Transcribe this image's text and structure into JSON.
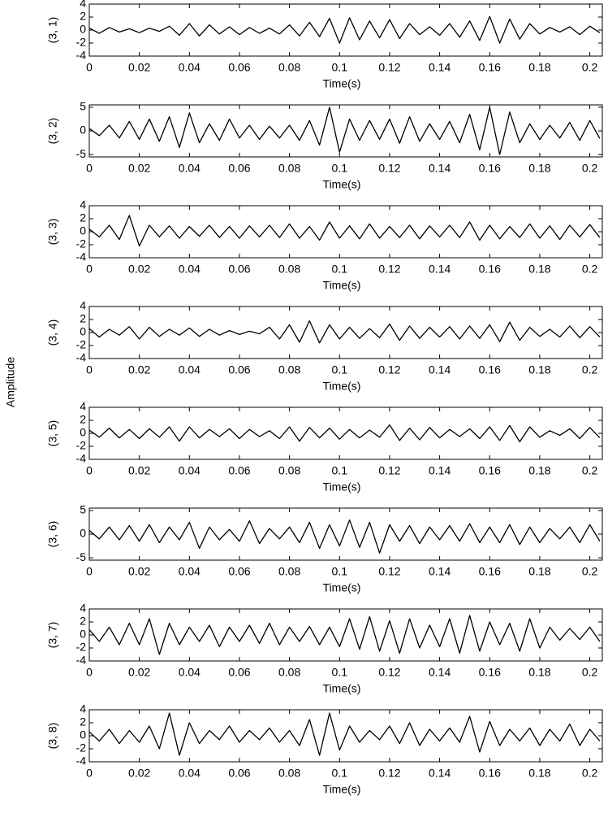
{
  "ylabel": "Amplitude",
  "chart_data": [
    {
      "type": "line",
      "ylabel": "(3, 1)",
      "xlabel": "Time(s)",
      "color": "#000000",
      "x": [
        0,
        0.004,
        0.008,
        0.012,
        0.016,
        0.02,
        0.024,
        0.028,
        0.032,
        0.036,
        0.04,
        0.044,
        0.048,
        0.052,
        0.056,
        0.06,
        0.064,
        0.068,
        0.072,
        0.076,
        0.08,
        0.084,
        0.088,
        0.092,
        0.096,
        0.1,
        0.104,
        0.108,
        0.112,
        0.116,
        0.12,
        0.124,
        0.128,
        0.132,
        0.136,
        0.14,
        0.144,
        0.148,
        0.152,
        0.156,
        0.16,
        0.164,
        0.168,
        0.172,
        0.176,
        0.18,
        0.184,
        0.188,
        0.192,
        0.196,
        0.2,
        0.204
      ],
      "values": [
        0.3,
        -0.5,
        0.4,
        -0.3,
        0.2,
        -0.4,
        0.3,
        -0.2,
        0.6,
        -0.8,
        1.0,
        -0.9,
        0.8,
        -0.6,
        0.5,
        -0.7,
        0.4,
        -0.5,
        0.3,
        -0.6,
        0.8,
        -0.9,
        1.2,
        -1.0,
        1.8,
        -2.0,
        1.9,
        -1.5,
        1.4,
        -1.2,
        1.6,
        -1.3,
        1.0,
        -0.7,
        0.5,
        -0.8,
        1.0,
        -1.1,
        1.4,
        -1.6,
        2.1,
        -2.0,
        1.7,
        -1.4,
        1.0,
        -0.6,
        0.4,
        -0.3,
        0.5,
        -0.7,
        0.6,
        -0.4
      ],
      "xlim": [
        0,
        0.205
      ],
      "xticks": [
        0,
        0.02,
        0.04,
        0.06,
        0.08,
        0.1,
        0.12,
        0.14,
        0.16,
        0.18,
        0.2
      ],
      "ylim": [
        -4,
        4
      ],
      "yticks": [
        -4,
        -2,
        0,
        2,
        4
      ]
    },
    {
      "type": "line",
      "ylabel": "(3, 2)",
      "xlabel": "Time(s)",
      "color": "#000000",
      "x": [
        0,
        0.004,
        0.008,
        0.012,
        0.016,
        0.02,
        0.024,
        0.028,
        0.032,
        0.036,
        0.04,
        0.044,
        0.048,
        0.052,
        0.056,
        0.06,
        0.064,
        0.068,
        0.072,
        0.076,
        0.08,
        0.084,
        0.088,
        0.092,
        0.096,
        0.1,
        0.104,
        0.108,
        0.112,
        0.116,
        0.12,
        0.124,
        0.128,
        0.132,
        0.136,
        0.14,
        0.144,
        0.148,
        0.152,
        0.156,
        0.16,
        0.164,
        0.168,
        0.172,
        0.176,
        0.18,
        0.184,
        0.188,
        0.192,
        0.196,
        0.2,
        0.204
      ],
      "values": [
        0.5,
        -1.0,
        1.2,
        -1.5,
        2.0,
        -1.8,
        2.5,
        -2.2,
        3.0,
        -3.5,
        3.8,
        -2.5,
        1.5,
        -2.0,
        2.5,
        -1.5,
        1.2,
        -1.8,
        1.0,
        -1.5,
        1.2,
        -2.0,
        2.2,
        -3.0,
        5.0,
        -4.5,
        2.5,
        -2.0,
        2.2,
        -1.8,
        2.5,
        -2.6,
        3.0,
        -2.2,
        1.5,
        -1.8,
        2.0,
        -2.5,
        3.5,
        -4.0,
        5.0,
        -5.0,
        4.0,
        -2.5,
        1.5,
        -1.8,
        1.2,
        -1.5,
        1.8,
        -2.0,
        2.2,
        -1.6
      ],
      "xlim": [
        0,
        0.205
      ],
      "xticks": [
        0,
        0.02,
        0.04,
        0.06,
        0.08,
        0.1,
        0.12,
        0.14,
        0.16,
        0.18,
        0.2
      ],
      "ylim": [
        -5.5,
        5.5
      ],
      "yticks": [
        -5,
        0,
        5
      ]
    },
    {
      "type": "line",
      "ylabel": "(3, 3)",
      "xlabel": "Time(s)",
      "color": "#000000",
      "x": [
        0,
        0.004,
        0.008,
        0.012,
        0.016,
        0.02,
        0.024,
        0.028,
        0.032,
        0.036,
        0.04,
        0.044,
        0.048,
        0.052,
        0.056,
        0.06,
        0.064,
        0.068,
        0.072,
        0.076,
        0.08,
        0.084,
        0.088,
        0.092,
        0.096,
        0.1,
        0.104,
        0.108,
        0.112,
        0.116,
        0.12,
        0.124,
        0.128,
        0.132,
        0.136,
        0.14,
        0.144,
        0.148,
        0.152,
        0.156,
        0.16,
        0.164,
        0.168,
        0.172,
        0.176,
        0.18,
        0.184,
        0.188,
        0.192,
        0.196,
        0.2,
        0.204
      ],
      "values": [
        0.4,
        -0.8,
        1.0,
        -1.2,
        2.5,
        -2.2,
        1.0,
        -0.8,
        0.9,
        -1.0,
        0.8,
        -0.7,
        1.0,
        -0.9,
        0.8,
        -1.0,
        0.9,
        -0.8,
        1.0,
        -0.9,
        1.2,
        -1.0,
        0.8,
        -1.3,
        1.5,
        -1.0,
        0.9,
        -1.1,
        1.2,
        -1.0,
        0.8,
        -0.9,
        1.0,
        -1.1,
        0.9,
        -0.8,
        1.0,
        -0.9,
        1.5,
        -1.3,
        1.0,
        -1.1,
        0.8,
        -0.9,
        1.2,
        -1.0,
        0.9,
        -1.2,
        1.0,
        -0.8,
        1.1,
        -0.9
      ],
      "xlim": [
        0,
        0.205
      ],
      "xticks": [
        0,
        0.02,
        0.04,
        0.06,
        0.08,
        0.1,
        0.12,
        0.14,
        0.16,
        0.18,
        0.2
      ],
      "ylim": [
        -4,
        4
      ],
      "yticks": [
        -4,
        -2,
        0,
        2,
        4
      ]
    },
    {
      "type": "line",
      "ylabel": "(3, 4)",
      "xlabel": "Time(s)",
      "color": "#000000",
      "x": [
        0,
        0.004,
        0.008,
        0.012,
        0.016,
        0.02,
        0.024,
        0.028,
        0.032,
        0.036,
        0.04,
        0.044,
        0.048,
        0.052,
        0.056,
        0.06,
        0.064,
        0.068,
        0.072,
        0.076,
        0.08,
        0.084,
        0.088,
        0.092,
        0.096,
        0.1,
        0.104,
        0.108,
        0.112,
        0.116,
        0.12,
        0.124,
        0.128,
        0.132,
        0.136,
        0.14,
        0.144,
        0.148,
        0.152,
        0.156,
        0.16,
        0.164,
        0.168,
        0.172,
        0.176,
        0.18,
        0.184,
        0.188,
        0.192,
        0.196,
        0.2,
        0.204
      ],
      "values": [
        0.6,
        -0.7,
        0.5,
        -0.4,
        0.9,
        -1.0,
        0.8,
        -0.6,
        0.5,
        -0.4,
        0.7,
        -0.6,
        0.5,
        -0.4,
        0.3,
        -0.3,
        0.2,
        -0.2,
        0.8,
        -1.0,
        1.2,
        -1.5,
        1.8,
        -1.6,
        1.2,
        -1.0,
        0.8,
        -0.9,
        0.6,
        -0.8,
        1.3,
        -1.2,
        1.0,
        -0.9,
        0.8,
        -0.7,
        0.9,
        -1.0,
        1.0,
        -0.9,
        1.2,
        -1.4,
        1.6,
        -1.2,
        0.8,
        -0.6,
        0.5,
        -0.7,
        1.0,
        -0.8,
        0.9,
        -0.7
      ],
      "xlim": [
        0,
        0.205
      ],
      "xticks": [
        0,
        0.02,
        0.04,
        0.06,
        0.08,
        0.1,
        0.12,
        0.14,
        0.16,
        0.18,
        0.2
      ],
      "ylim": [
        -4,
        4
      ],
      "yticks": [
        -4,
        -2,
        0,
        2,
        4
      ]
    },
    {
      "type": "line",
      "ylabel": "(3, 5)",
      "xlabel": "Time(s)",
      "color": "#000000",
      "x": [
        0,
        0.004,
        0.008,
        0.012,
        0.016,
        0.02,
        0.024,
        0.028,
        0.032,
        0.036,
        0.04,
        0.044,
        0.048,
        0.052,
        0.056,
        0.06,
        0.064,
        0.068,
        0.072,
        0.076,
        0.08,
        0.084,
        0.088,
        0.092,
        0.096,
        0.1,
        0.104,
        0.108,
        0.112,
        0.116,
        0.12,
        0.124,
        0.128,
        0.132,
        0.136,
        0.14,
        0.144,
        0.148,
        0.152,
        0.156,
        0.16,
        0.164,
        0.168,
        0.172,
        0.176,
        0.18,
        0.184,
        0.188,
        0.192,
        0.196,
        0.2,
        0.204
      ],
      "values": [
        0.5,
        -0.6,
        0.8,
        -0.7,
        0.6,
        -0.8,
        0.7,
        -0.6,
        1.0,
        -1.2,
        1.0,
        -0.7,
        0.6,
        -0.5,
        0.7,
        -0.8,
        0.6,
        -0.5,
        0.4,
        -0.8,
        1.0,
        -1.2,
        0.9,
        -0.7,
        0.8,
        -0.9,
        0.6,
        -0.7,
        0.5,
        -0.6,
        1.3,
        -1.1,
        0.8,
        -1.0,
        0.9,
        -0.7,
        0.6,
        -0.5,
        0.7,
        -0.8,
        1.0,
        -1.1,
        1.2,
        -1.3,
        1.0,
        -0.6,
        0.4,
        -0.3,
        0.7,
        -0.8,
        0.9,
        -0.7
      ],
      "xlim": [
        0,
        0.205
      ],
      "xticks": [
        0,
        0.02,
        0.04,
        0.06,
        0.08,
        0.1,
        0.12,
        0.14,
        0.16,
        0.18,
        0.2
      ],
      "ylim": [
        -4,
        4
      ],
      "yticks": [
        -4,
        -2,
        0,
        2,
        4
      ]
    },
    {
      "type": "line",
      "ylabel": "(3, 6)",
      "xlabel": "Time(s)",
      "color": "#000000",
      "x": [
        0,
        0.004,
        0.008,
        0.012,
        0.016,
        0.02,
        0.024,
        0.028,
        0.032,
        0.036,
        0.04,
        0.044,
        0.048,
        0.052,
        0.056,
        0.06,
        0.064,
        0.068,
        0.072,
        0.076,
        0.08,
        0.084,
        0.088,
        0.092,
        0.096,
        0.1,
        0.104,
        0.108,
        0.112,
        0.116,
        0.12,
        0.124,
        0.128,
        0.132,
        0.136,
        0.14,
        0.144,
        0.148,
        0.152,
        0.156,
        0.16,
        0.164,
        0.168,
        0.172,
        0.176,
        0.18,
        0.184,
        0.188,
        0.192,
        0.196,
        0.2,
        0.204
      ],
      "values": [
        0.8,
        -1.0,
        1.5,
        -1.2,
        1.8,
        -1.5,
        2.0,
        -1.8,
        1.5,
        -1.2,
        2.5,
        -3.0,
        1.5,
        -1.2,
        1.0,
        -1.5,
        2.8,
        -2.0,
        1.2,
        -1.0,
        1.5,
        -1.8,
        2.5,
        -3.0,
        2.0,
        -2.5,
        3.0,
        -2.8,
        2.5,
        -4.0,
        2.0,
        -1.5,
        1.8,
        -2.0,
        1.5,
        -1.2,
        1.8,
        -1.5,
        2.2,
        -1.8,
        1.5,
        -1.8,
        2.0,
        -2.2,
        1.5,
        -1.8,
        1.2,
        -1.0,
        1.5,
        -1.8,
        2.0,
        -1.5
      ],
      "xlim": [
        0,
        0.205
      ],
      "xticks": [
        0,
        0.02,
        0.04,
        0.06,
        0.08,
        0.1,
        0.12,
        0.14,
        0.16,
        0.18,
        0.2
      ],
      "ylim": [
        -5.5,
        5.5
      ],
      "yticks": [
        -5,
        0,
        5
      ]
    },
    {
      "type": "line",
      "ylabel": "(3, 7)",
      "xlabel": "Time(s)",
      "color": "#000000",
      "x": [
        0,
        0.004,
        0.008,
        0.012,
        0.016,
        0.02,
        0.024,
        0.028,
        0.032,
        0.036,
        0.04,
        0.044,
        0.048,
        0.052,
        0.056,
        0.06,
        0.064,
        0.068,
        0.072,
        0.076,
        0.08,
        0.084,
        0.088,
        0.092,
        0.096,
        0.1,
        0.104,
        0.108,
        0.112,
        0.116,
        0.12,
        0.124,
        0.128,
        0.132,
        0.136,
        0.14,
        0.144,
        0.148,
        0.152,
        0.156,
        0.16,
        0.164,
        0.168,
        0.172,
        0.176,
        0.18,
        0.184,
        0.188,
        0.192,
        0.196,
        0.2,
        0.204
      ],
      "values": [
        0.8,
        -1.0,
        1.2,
        -1.5,
        1.8,
        -1.5,
        2.5,
        -3.0,
        1.8,
        -1.5,
        1.2,
        -1.0,
        1.5,
        -1.8,
        1.2,
        -1.0,
        1.5,
        -1.3,
        1.8,
        -1.5,
        1.2,
        -1.0,
        1.3,
        -1.5,
        1.2,
        -1.8,
        2.5,
        -2.2,
        2.8,
        -2.5,
        2.2,
        -2.8,
        2.5,
        -2.0,
        1.5,
        -1.8,
        2.5,
        -2.8,
        3.0,
        -2.5,
        2.0,
        -1.5,
        1.8,
        -2.5,
        2.5,
        -2.0,
        1.2,
        -0.8,
        1.0,
        -0.7,
        1.2,
        -1.0
      ],
      "xlim": [
        0,
        0.205
      ],
      "xticks": [
        0,
        0.02,
        0.04,
        0.06,
        0.08,
        0.1,
        0.12,
        0.14,
        0.16,
        0.18,
        0.2
      ],
      "ylim": [
        -4,
        4
      ],
      "yticks": [
        -4,
        -2,
        0,
        2,
        4
      ]
    },
    {
      "type": "line",
      "ylabel": "(3, 8)",
      "xlabel": "Time(s)",
      "color": "#000000",
      "x": [
        0,
        0.004,
        0.008,
        0.012,
        0.016,
        0.02,
        0.024,
        0.028,
        0.032,
        0.036,
        0.04,
        0.044,
        0.048,
        0.052,
        0.056,
        0.06,
        0.064,
        0.068,
        0.072,
        0.076,
        0.08,
        0.084,
        0.088,
        0.092,
        0.096,
        0.1,
        0.104,
        0.108,
        0.112,
        0.116,
        0.12,
        0.124,
        0.128,
        0.132,
        0.136,
        0.14,
        0.144,
        0.148,
        0.152,
        0.156,
        0.16,
        0.164,
        0.168,
        0.172,
        0.176,
        0.18,
        0.184,
        0.188,
        0.192,
        0.196,
        0.2,
        0.204
      ],
      "values": [
        0.6,
        -0.8,
        1.0,
        -1.2,
        0.8,
        -1.0,
        1.5,
        -2.0,
        3.5,
        -3.0,
        2.0,
        -1.2,
        0.8,
        -0.6,
        1.5,
        -1.0,
        0.8,
        -0.6,
        1.2,
        -1.0,
        0.8,
        -1.5,
        2.5,
        -3.0,
        3.5,
        -2.2,
        1.5,
        -1.0,
        0.8,
        -0.6,
        1.5,
        -1.2,
        2.0,
        -1.5,
        1.0,
        -0.8,
        1.2,
        -1.0,
        3.0,
        -2.5,
        2.2,
        -1.5,
        1.0,
        -0.8,
        1.2,
        -1.5,
        1.0,
        -0.8,
        1.8,
        -1.5,
        1.0,
        -0.8
      ],
      "xlim": [
        0,
        0.205
      ],
      "xticks": [
        0,
        0.02,
        0.04,
        0.06,
        0.08,
        0.1,
        0.12,
        0.14,
        0.16,
        0.18,
        0.2
      ],
      "ylim": [
        -4,
        4
      ],
      "yticks": [
        -4,
        -2,
        0,
        2,
        4
      ]
    }
  ]
}
